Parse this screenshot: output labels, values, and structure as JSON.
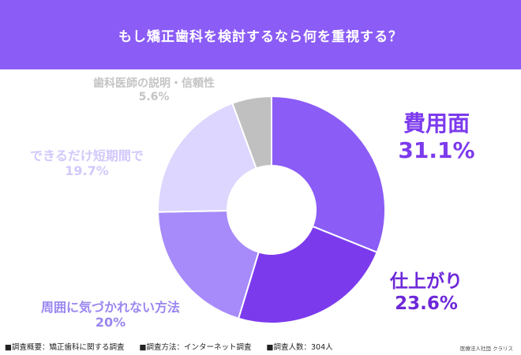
{
  "chart_data": {
    "type": "pie",
    "title": "もし矯正歯科を検討するなら何を重視する？",
    "slices": [
      {
        "label": "費用面",
        "value": 31.1,
        "value_label": "31.1%",
        "color": "#8b5cf6",
        "label_color": "#7c3aed"
      },
      {
        "label": "仕上がり",
        "value": 23.6,
        "value_label": "23.6%",
        "color": "#7c3aed",
        "label_color": "#6d28d9"
      },
      {
        "label": "周囲に気づかれない方法",
        "value": 20,
        "value_label": "20%",
        "color": "#a78bfa",
        "label_color": "#9b86f0"
      },
      {
        "label": "できるだけ短期間で",
        "value": 19.7,
        "value_label": "19.7%",
        "color": "#ddd6fe",
        "label_color": "#d2c8fb"
      },
      {
        "label": "歯科医師の説明・信頼性",
        "value": 5.6,
        "value_label": "5.6%",
        "color": "#c0c0c0",
        "label_color": "#c4c4c4"
      }
    ],
    "donut": true
  },
  "footer": {
    "survey_overview": "■調査概要：矯正歯科に関する調査",
    "survey_method": "■調査方法：インターネット調査",
    "survey_count": "■調査人数：304人"
  },
  "credit": "医療法人社団 クラリス"
}
